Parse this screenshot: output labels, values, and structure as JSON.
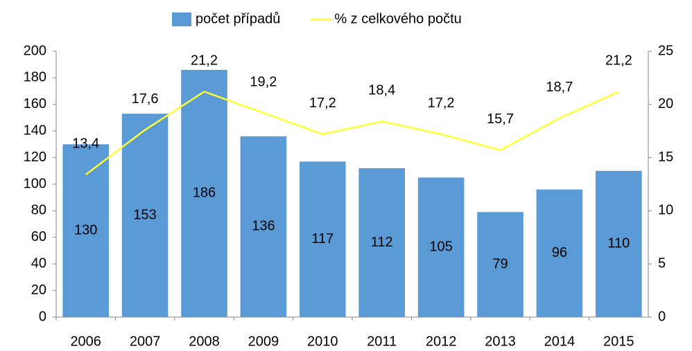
{
  "chart_data": {
    "type": "combo",
    "categories": [
      "2006",
      "2007",
      "2008",
      "2009",
      "2010",
      "2011",
      "2012",
      "2013",
      "2014",
      "2015"
    ],
    "series": [
      {
        "name": "počet případů",
        "type": "bar",
        "color": "#5b9bd5",
        "values": [
          130,
          153,
          186,
          136,
          117,
          112,
          105,
          79,
          96,
          110
        ]
      },
      {
        "name": "% z celkového počtu",
        "type": "line",
        "axis": "y2",
        "color": "#ffff33",
        "values": [
          13.4,
          17.6,
          21.2,
          19.2,
          17.2,
          18.4,
          17.2,
          15.7,
          18.7,
          21.2
        ],
        "value_labels": [
          "13,4",
          "17,6",
          "21,2",
          "19,2",
          "17,2",
          "18,4",
          "17,2",
          "15,7",
          "18,7",
          "21,2"
        ]
      }
    ],
    "ylim": [
      0,
      200
    ],
    "yticks": [
      0,
      20,
      40,
      60,
      80,
      100,
      120,
      140,
      160,
      180,
      200
    ],
    "y2lim": [
      0,
      25
    ],
    "y2ticks": [
      0,
      5,
      10,
      15,
      20,
      25
    ],
    "legend": "top"
  }
}
